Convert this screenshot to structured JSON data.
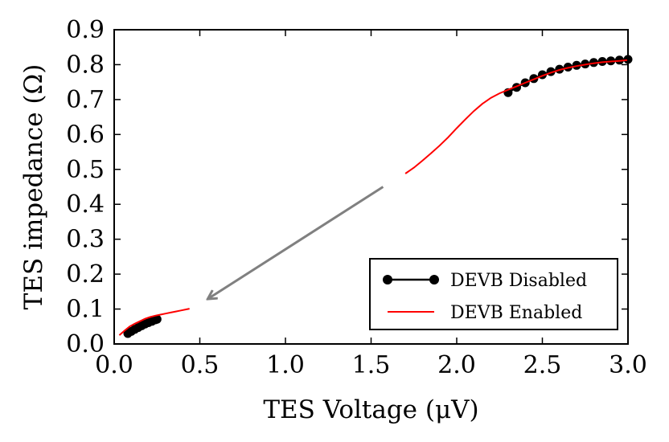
{
  "chart_data": {
    "type": "scatter",
    "title": "",
    "xlabel": "TES Voltage (μV)",
    "ylabel": "TES impedance (Ω)",
    "xlim": [
      0.0,
      3.0
    ],
    "ylim": [
      0.0,
      0.9
    ],
    "xticks": [
      "0.0",
      "0.5",
      "1.0",
      "1.5",
      "2.0",
      "2.5",
      "3.0"
    ],
    "yticks": [
      "0.0",
      "0.1",
      "0.2",
      "0.3",
      "0.4",
      "0.5",
      "0.6",
      "0.7",
      "0.8",
      "0.9"
    ],
    "grid": false,
    "legend_position": "lower-right",
    "series": [
      {
        "name": "DEVB Disabled",
        "style": "line-with-markers",
        "color": "#000000",
        "segments": [
          {
            "x": [
              0.08,
              0.1,
              0.12,
              0.14,
              0.16,
              0.18,
              0.2,
              0.22,
              0.24,
              0.25
            ],
            "y": [
              0.03,
              0.036,
              0.042,
              0.047,
              0.052,
              0.057,
              0.061,
              0.065,
              0.069,
              0.071
            ]
          },
          {
            "x": [
              2.3,
              2.35,
              2.4,
              2.45,
              2.5,
              2.55,
              2.6,
              2.65,
              2.7,
              2.75,
              2.8,
              2.85,
              2.9,
              2.95,
              3.0
            ],
            "y": [
              0.72,
              0.735,
              0.748,
              0.76,
              0.771,
              0.78,
              0.787,
              0.793,
              0.798,
              0.802,
              0.806,
              0.809,
              0.811,
              0.813,
              0.815
            ]
          }
        ]
      },
      {
        "name": "DEVB Enabled",
        "style": "line",
        "color": "#ff0000",
        "segments": [
          {
            "x": [
              0.03,
              0.06,
              0.09,
              0.12,
              0.15,
              0.18,
              0.21,
              0.24,
              0.27,
              0.3,
              0.33,
              0.36,
              0.39,
              0.42,
              0.44
            ],
            "y": [
              0.025,
              0.038,
              0.05,
              0.058,
              0.065,
              0.072,
              0.077,
              0.081,
              0.084,
              0.087,
              0.09,
              0.093,
              0.096,
              0.099,
              0.101
            ]
          },
          {
            "x": [
              1.7,
              1.75,
              1.8,
              1.85,
              1.9,
              1.95,
              2.0,
              2.05,
              2.1,
              2.15,
              2.2,
              2.25,
              2.3,
              2.35,
              2.4,
              2.45,
              2.5,
              2.55,
              2.6,
              2.65,
              2.7,
              2.75,
              2.8,
              2.85,
              2.9,
              2.95,
              3.0
            ],
            "y": [
              0.488,
              0.505,
              0.525,
              0.546,
              0.568,
              0.592,
              0.618,
              0.643,
              0.667,
              0.688,
              0.705,
              0.718,
              0.728,
              0.738,
              0.748,
              0.758,
              0.768,
              0.777,
              0.785,
              0.791,
              0.796,
              0.8,
              0.804,
              0.807,
              0.809,
              0.811,
              0.813
            ]
          }
        ]
      }
    ],
    "annotations": [
      {
        "type": "arrow",
        "color": "#808080",
        "from": [
          1.57,
          0.45
        ],
        "to": [
          0.55,
          0.13
        ]
      }
    ]
  }
}
